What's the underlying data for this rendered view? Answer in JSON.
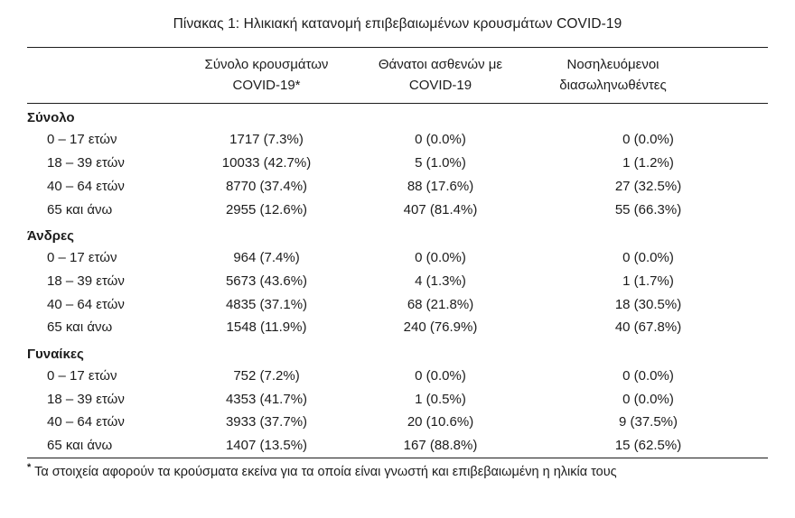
{
  "title": "Πίνακας 1: Ηλικιακή κατανομή επιβεβαιωμένων κρουσμάτων COVID-19",
  "table": {
    "columns": [
      {
        "line1": "Σύνολο κρουσμάτων",
        "line2": "COVID-19*"
      },
      {
        "line1": "Θάνατοι ασθενών με",
        "line2": "COVID-19"
      },
      {
        "line1": "Νοσηλευόμενοι",
        "line2": "διασωληνωθέντες"
      }
    ],
    "sections": [
      {
        "header": "Σύνολο",
        "rows": [
          {
            "label": "0 – 17 ετών",
            "values": [
              "1717 (7.3%)",
              "0 (0.0%)",
              "0 (0.0%)"
            ]
          },
          {
            "label": "18 – 39 ετών",
            "values": [
              "10033 (42.7%)",
              "5 (1.0%)",
              "1 (1.2%)"
            ]
          },
          {
            "label": "40 – 64 ετών",
            "values": [
              "8770 (37.4%)",
              "88 (17.6%)",
              "27 (32.5%)"
            ]
          },
          {
            "label": "65 και άνω",
            "values": [
              "2955 (12.6%)",
              "407 (81.4%)",
              "55 (66.3%)"
            ]
          }
        ]
      },
      {
        "header": "Άνδρες",
        "rows": [
          {
            "label": "0 – 17 ετών",
            "values": [
              "964 (7.4%)",
              "0 (0.0%)",
              "0 (0.0%)"
            ]
          },
          {
            "label": "18 – 39 ετών",
            "values": [
              "5673 (43.6%)",
              "4 (1.3%)",
              "1 (1.7%)"
            ]
          },
          {
            "label": "40 – 64 ετών",
            "values": [
              "4835 (37.1%)",
              "68 (21.8%)",
              "18 (30.5%)"
            ]
          },
          {
            "label": "65 και άνω",
            "values": [
              "1548 (11.9%)",
              "240 (76.9%)",
              "40 (67.8%)"
            ]
          }
        ]
      },
      {
        "header": "Γυναίκες",
        "rows": [
          {
            "label": "0 – 17 ετών",
            "values": [
              "752 (7.2%)",
              "0 (0.0%)",
              "0 (0.0%)"
            ]
          },
          {
            "label": "18 – 39 ετών",
            "values": [
              "4353 (41.7%)",
              "1 (0.5%)",
              "0 (0.0%)"
            ]
          },
          {
            "label": "40 – 64 ετών",
            "values": [
              "3933 (37.7%)",
              "20 (10.6%)",
              "9 (37.5%)"
            ]
          },
          {
            "label": "65 και άνω",
            "values": [
              "1407 (13.5%)",
              "167 (88.8%)",
              "15 (62.5%)"
            ]
          }
        ]
      }
    ]
  },
  "footnote": {
    "marker": "*",
    "text": "Τα στοιχεία αφορούν τα κρούσματα εκείνα για τα οποία είναι γνωστή και επιβεβαιωμένη η ηλικία τους"
  }
}
